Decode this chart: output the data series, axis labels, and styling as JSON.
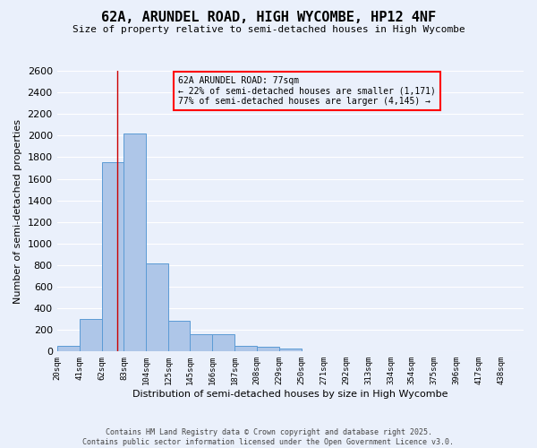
{
  "title": "62A, ARUNDEL ROAD, HIGH WYCOMBE, HP12 4NF",
  "subtitle": "Size of property relative to semi-detached houses in High Wycombe",
  "xlabel": "Distribution of semi-detached houses by size in High Wycombe",
  "ylabel": "Number of semi-detached properties",
  "footer_line1": "Contains HM Land Registry data © Crown copyright and database right 2025.",
  "footer_line2": "Contains public sector information licensed under the Open Government Licence v3.0.",
  "annotation_title": "62A ARUNDEL ROAD: 77sqm",
  "annotation_line2": "← 22% of semi-detached houses are smaller (1,171)",
  "annotation_line3": "77% of semi-detached houses are larger (4,145) →",
  "property_size": 77,
  "bar_left_edges": [
    20,
    41,
    62,
    83,
    104,
    125,
    145,
    166,
    187,
    208,
    229,
    250,
    271,
    292,
    313,
    334,
    354,
    375,
    396,
    417
  ],
  "bar_widths": [
    21,
    21,
    21,
    21,
    21,
    20,
    21,
    21,
    21,
    21,
    21,
    21,
    21,
    21,
    21,
    20,
    21,
    21,
    21,
    21
  ],
  "bar_heights": [
    50,
    300,
    1750,
    2020,
    820,
    285,
    160,
    160,
    50,
    45,
    25,
    0,
    0,
    0,
    0,
    0,
    0,
    0,
    0,
    0
  ],
  "bar_color": "#aec6e8",
  "bar_edge_color": "#5b9bd5",
  "line_color": "#cc0000",
  "bg_color": "#eaf0fb",
  "grid_color": "#ffffff",
  "ylim": [
    0,
    2600
  ],
  "yticks": [
    0,
    200,
    400,
    600,
    800,
    1000,
    1200,
    1400,
    1600,
    1800,
    2000,
    2200,
    2400,
    2600
  ],
  "xtick_labels": [
    "20sqm",
    "41sqm",
    "62sqm",
    "83sqm",
    "104sqm",
    "125sqm",
    "145sqm",
    "166sqm",
    "187sqm",
    "208sqm",
    "229sqm",
    "250sqm",
    "271sqm",
    "292sqm",
    "313sqm",
    "334sqm",
    "354sqm",
    "375sqm",
    "396sqm",
    "417sqm",
    "438sqm"
  ],
  "xlim": [
    20,
    459
  ],
  "title_fontsize": 11,
  "subtitle_fontsize": 8,
  "ylabel_fontsize": 8,
  "xlabel_fontsize": 8,
  "ytick_fontsize": 8,
  "xtick_fontsize": 6.5,
  "annotation_fontsize": 7,
  "footer_fontsize": 6
}
